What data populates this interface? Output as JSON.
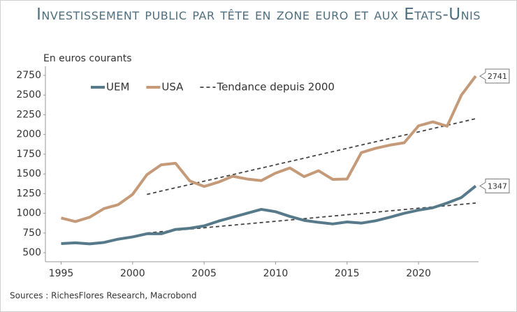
{
  "chart_data": {
    "type": "line",
    "title": "Investissement public par tête en zone euro et aux Etats-Unis",
    "subtitle": "En euros courants",
    "source": "Sources : RichesFlores Research, Macrobond",
    "x": [
      1995,
      1996,
      1997,
      1998,
      1999,
      2000,
      2001,
      2002,
      2003,
      2004,
      2005,
      2006,
      2007,
      2008,
      2009,
      2010,
      2011,
      2012,
      2013,
      2014,
      2015,
      2016,
      2017,
      2018,
      2019,
      2020,
      2021,
      2022,
      2023,
      2024
    ],
    "series": [
      {
        "name": "UEM",
        "color": "#567a8a",
        "values": [
          615,
          625,
          612,
          630,
          672,
          700,
          740,
          740,
          795,
          810,
          840,
          900,
          950,
          1000,
          1050,
          1020,
          960,
          910,
          885,
          865,
          890,
          875,
          905,
          950,
          1000,
          1040,
          1070,
          1130,
          1200,
          1347
        ]
      },
      {
        "name": "USA",
        "color": "#c49a78",
        "values": [
          940,
          895,
          950,
          1060,
          1110,
          1240,
          1490,
          1615,
          1635,
          1410,
          1340,
          1395,
          1470,
          1435,
          1415,
          1510,
          1575,
          1465,
          1540,
          1430,
          1435,
          1770,
          1825,
          1865,
          1895,
          2110,
          2160,
          2105,
          2500,
          2741
        ]
      }
    ],
    "trend": {
      "name": "Tendance depuis 2000",
      "color": "#444444",
      "lines": [
        {
          "x": [
            2001,
            2024
          ],
          "values": [
            1240,
            2200
          ]
        },
        {
          "x": [
            2001,
            2024
          ],
          "values": [
            750,
            1130
          ]
        }
      ]
    },
    "xlim": [
      1993.9,
      2024.2
    ],
    "xticks": [
      1995,
      2000,
      2005,
      2010,
      2015,
      2020
    ],
    "ylim": [
      385,
      2865
    ],
    "yticks": [
      500,
      750,
      1000,
      1250,
      1500,
      1750,
      2000,
      2250,
      2500,
      2750
    ],
    "grid": false
  }
}
